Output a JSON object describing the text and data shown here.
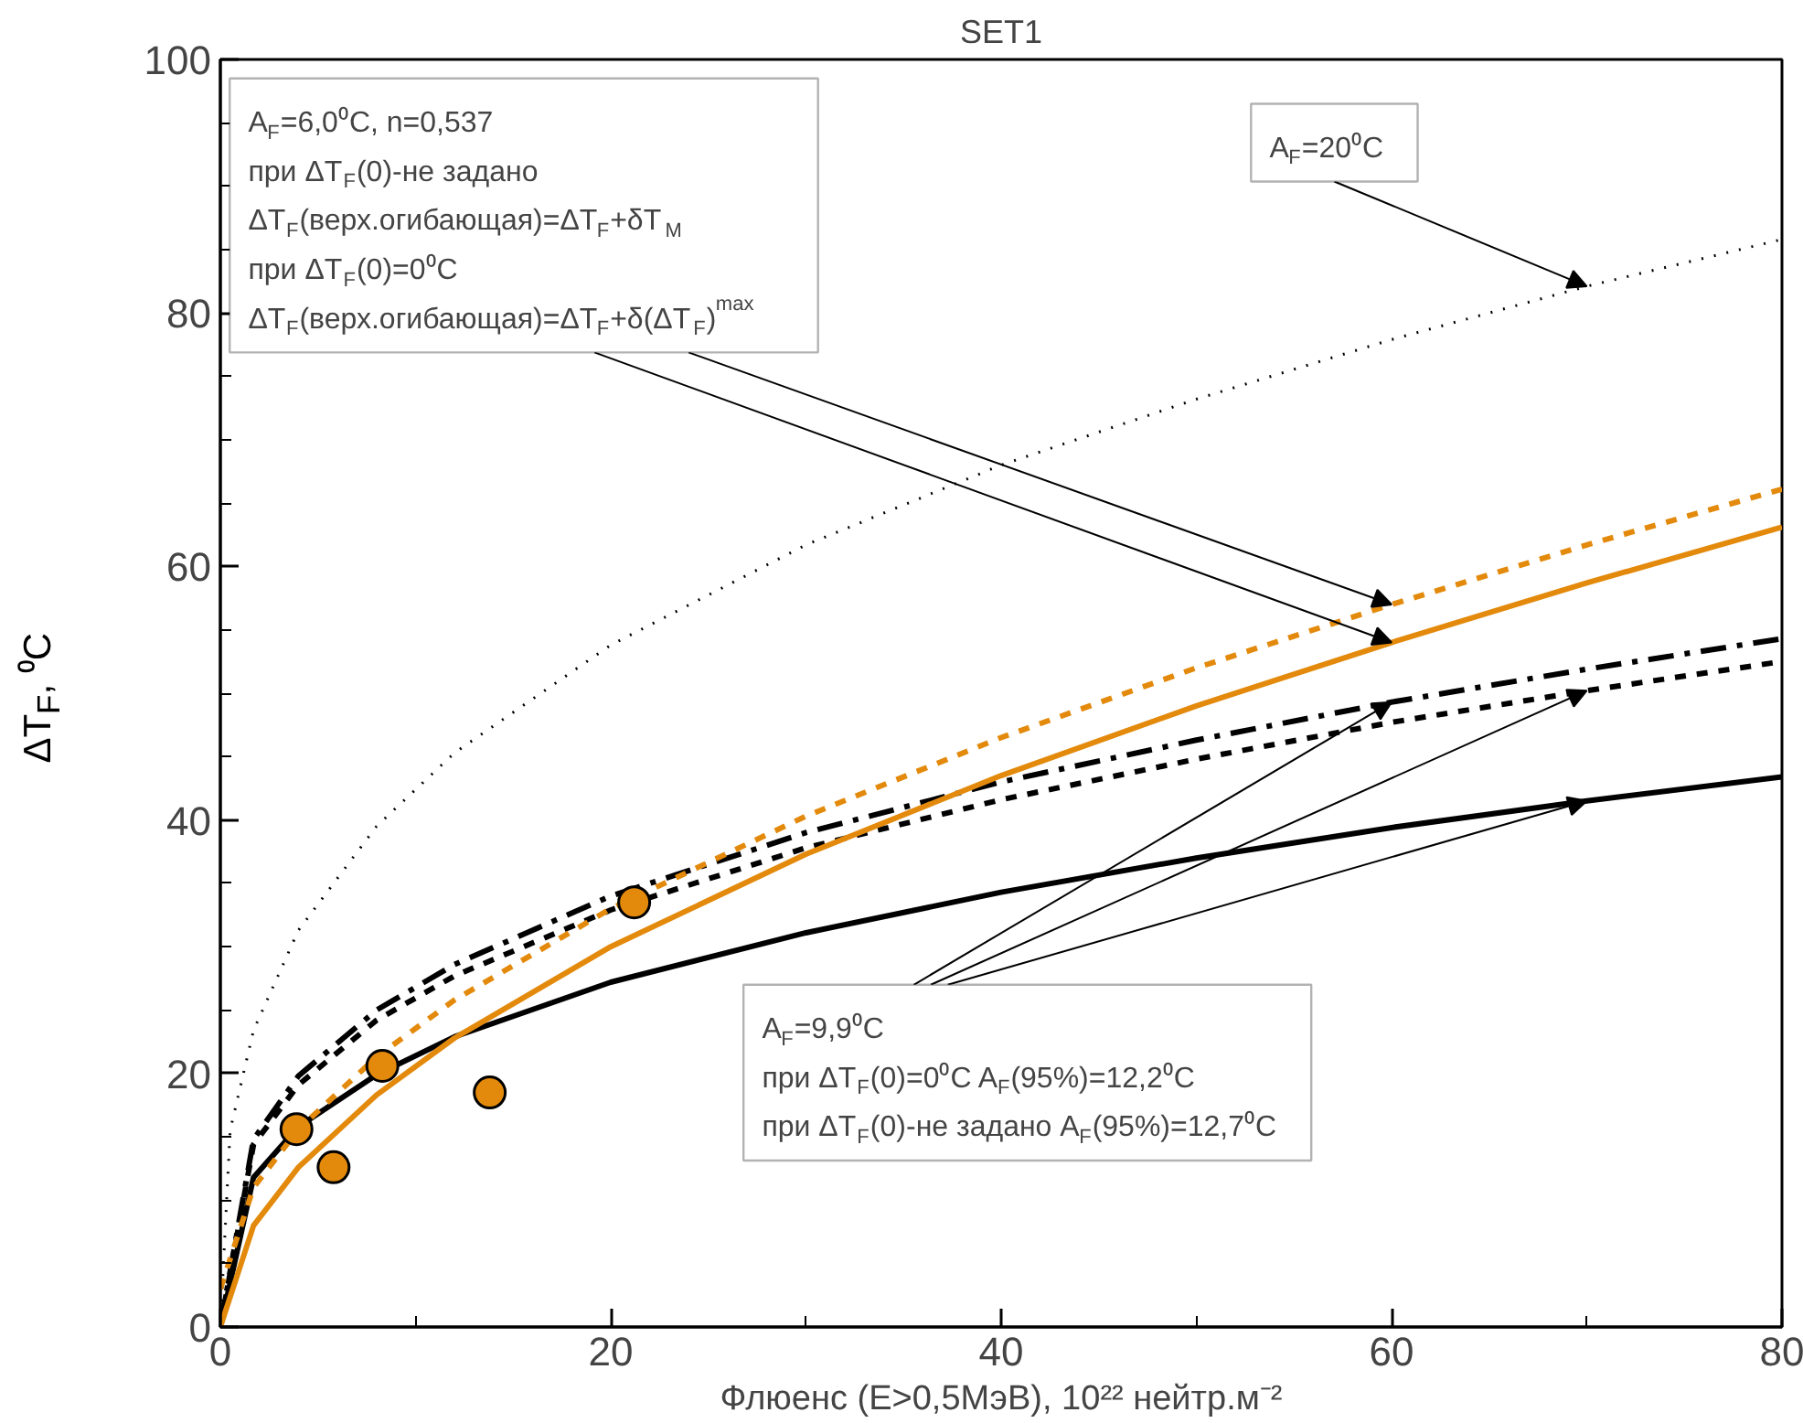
{
  "chart_data": {
    "type": "line",
    "title": "SET1",
    "xlabel": "Флюенс (E>0,5МэВ), 10²² нейтр.м⁻²",
    "ylabel": "ΔT$_{F}$, ⁰C",
    "xlim": [
      0,
      80
    ],
    "ylim": [
      0,
      100
    ],
    "xticks": [
      0,
      {
        "value": 10,
        "label": null
      },
      20,
      {
        "value": 30,
        "label": null
      },
      40,
      {
        "value": 50,
        "label": null
      },
      60,
      {
        "value": 70,
        "label": null
      },
      80
    ],
    "yticks": [
      0,
      {
        "value": 5,
        "label": null
      },
      {
        "value": 10,
        "label": null
      },
      {
        "value": 15,
        "label": null
      },
      20,
      {
        "value": 25,
        "label": null
      },
      {
        "value": 30,
        "label": null
      },
      {
        "value": 35,
        "label": null
      },
      40,
      {
        "value": 45,
        "label": null
      },
      {
        "value": 50,
        "label": null
      },
      {
        "value": 55,
        "label": null
      },
      60,
      {
        "value": 65,
        "label": null
      },
      {
        "value": 70,
        "label": null
      },
      {
        "value": 75,
        "label": null
      },
      80,
      {
        "value": 85,
        "label": null
      },
      {
        "value": 90,
        "label": null
      },
      {
        "value": 95,
        "label": null
      },
      100
    ],
    "grid": false,
    "series": [
      {
        "color": "#000000",
        "line_style": "dotted",
        "x": [
          0,
          0.5,
          1.7,
          4,
          8,
          12,
          20,
          30,
          40,
          50,
          60,
          70,
          80
        ],
        "values": [
          0,
          15.5,
          23.4,
          31.3,
          39.5,
          45.3,
          53.8,
          61.7,
          68.0,
          73.2,
          77.9,
          82.1,
          85.8
        ]
      },
      {
        "color": "#000000",
        "line_style": "solid",
        "x": [
          0,
          1.7,
          4,
          8,
          12,
          20,
          30,
          40,
          50,
          60,
          70,
          80
        ],
        "values": [
          0,
          11.8,
          15.8,
          19.9,
          22.9,
          27.2,
          31.1,
          34.3,
          37.0,
          39.4,
          41.5,
          43.4
        ]
      },
      {
        "color": "#000000",
        "line_style": "dashed",
        "x": [
          0,
          1.7,
          4,
          8,
          12,
          20,
          30,
          40,
          50,
          60,
          70,
          80
        ],
        "values": [
          0,
          14.4,
          19.1,
          24.2,
          27.7,
          32.9,
          37.8,
          41.6,
          44.8,
          47.7,
          50.2,
          52.5
        ]
      },
      {
        "color": "#000000",
        "line_style": "dashdot",
        "x": [
          0,
          1.7,
          4,
          8,
          12,
          20,
          30,
          40,
          50,
          60,
          70,
          80
        ],
        "values": [
          0,
          14.8,
          19.8,
          25.0,
          28.6,
          34.0,
          39.0,
          43.0,
          46.3,
          49.3,
          51.9,
          54.3
        ]
      },
      {
        "color": "#e38a0c",
        "line_style": "solid",
        "x": [
          0,
          1.7,
          4,
          8,
          12,
          20,
          30,
          40,
          50,
          60,
          70,
          80
        ],
        "values": [
          0,
          8.0,
          12.6,
          18.3,
          22.8,
          30.0,
          37.3,
          43.5,
          49.0,
          54.0,
          58.7,
          63.1
        ]
      },
      {
        "color": "#e38a0c",
        "line_style": "dashed",
        "x": [
          0,
          1.7,
          4,
          8,
          12,
          20,
          30,
          40,
          50,
          60,
          70,
          80
        ],
        "values": [
          3.0,
          11.0,
          15.6,
          21.3,
          25.8,
          33.0,
          40.3,
          46.5,
          52.0,
          57.0,
          61.7,
          66.1
        ]
      },
      {
        "type": "scatter",
        "marker": "circle",
        "color": "#e38a0c",
        "x": [
          3.9,
          5.8,
          8.3,
          13.8,
          21.2
        ],
        "values": [
          15.6,
          12.6,
          20.6,
          18.5,
          33.5
        ]
      }
    ],
    "annotations": [
      "A$_{F}$=6,0⁰C, n=0,537\nпри ΔT$_{F}$(0)-не задано\nΔT$_{F}$(верх.огибающая)=ΔT$_{F}$+δT$_{M}$\nпри ΔT$_{F}$(0)=0⁰C\nΔT$_{F}$(верх.огибающая)=ΔT$_{F}$+δ(ΔT$_{F}$)$^{max}$",
      "A$_{F}$=9,9⁰C\nпри ΔT$_{F}$(0)=0⁰C A$_{F}$(95%)=12,2⁰C\nпри ΔT$_{F}$(0)-не задано A$_{F}$(95%)=12,7⁰C",
      {
        "text": "A$_{F}$=20⁰C",
        "x": 70,
        "y": 82.1
      }
    ]
  }
}
